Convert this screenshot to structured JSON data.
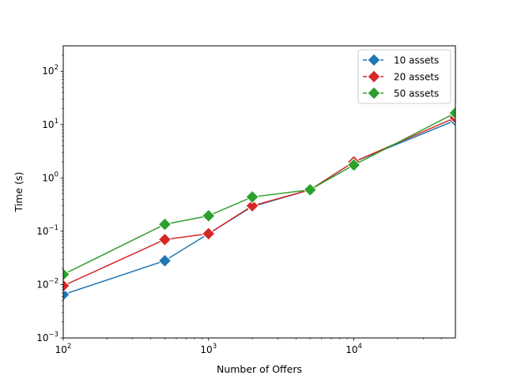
{
  "chart_data": {
    "type": "line",
    "title": "",
    "xlabel": "Number of Offers",
    "ylabel": "Time (s)",
    "x_scale": "log",
    "y_scale": "log",
    "xlim": [
      100,
      50000
    ],
    "ylim": [
      0.001,
      300
    ],
    "x_ticks": [
      {
        "value": 100,
        "base": "10",
        "exp": "2"
      },
      {
        "value": 1000,
        "base": "10",
        "exp": "3"
      },
      {
        "value": 10000,
        "base": "10",
        "exp": "4"
      }
    ],
    "y_ticks": [
      {
        "value": 0.001,
        "base": "10",
        "exp": "−3"
      },
      {
        "value": 0.01,
        "base": "10",
        "exp": "−2"
      },
      {
        "value": 0.1,
        "base": "10",
        "exp": "−1"
      },
      {
        "value": 1,
        "base": "10",
        "exp": "0"
      },
      {
        "value": 10,
        "base": "10",
        "exp": "1"
      },
      {
        "value": 100,
        "base": "10",
        "exp": "2"
      }
    ],
    "grid": false,
    "legend_position": "top-right",
    "marker": "diamond",
    "x": [
      100,
      500,
      1000,
      2000,
      5000,
      10000,
      50000
    ],
    "series": [
      {
        "name": "10 assets",
        "color": "#1f77b4",
        "values": [
          0.0065,
          0.028,
          0.09,
          0.29,
          0.6,
          2.0,
          12
        ]
      },
      {
        "name": "20 assets",
        "color": "#d62728",
        "values": [
          0.0095,
          0.07,
          0.09,
          0.3,
          0.6,
          2.0,
          13.5
        ]
      },
      {
        "name": "50 assets",
        "color": "#2ca02c",
        "values": [
          0.0155,
          0.135,
          0.195,
          0.44,
          0.6,
          1.75,
          16.5
        ]
      }
    ]
  }
}
